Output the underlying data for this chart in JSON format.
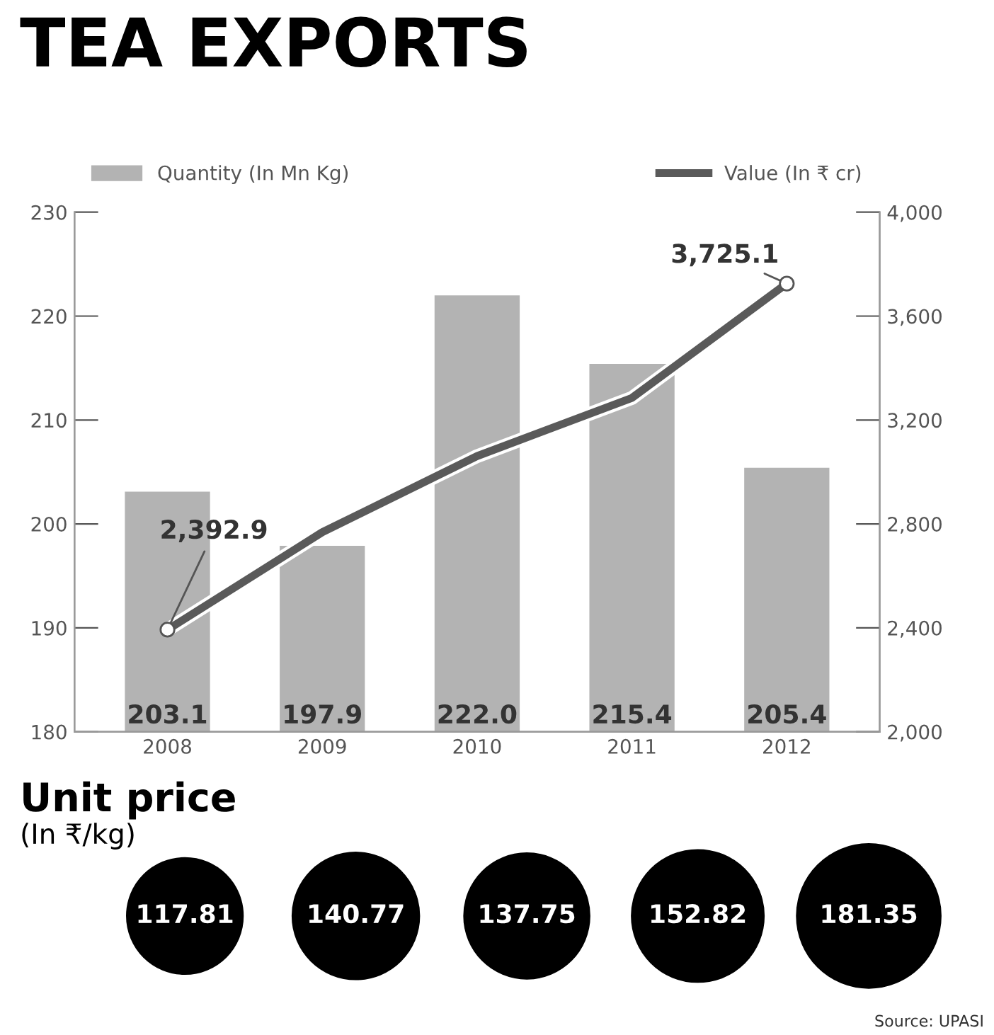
{
  "chart_data": [
    {
      "type": "bar",
      "title": "TEA EXPORTS",
      "categories": [
        "2008",
        "2009",
        "2010",
        "2011",
        "2012"
      ],
      "series": [
        {
          "name": "Quantity (In Mn Kg)",
          "type": "bar",
          "color": "#b3b3b3",
          "values": [
            203.1,
            197.9,
            222.0,
            215.4,
            205.4
          ],
          "value_labels": [
            "203.1",
            "197.9",
            "222.0",
            "215.4",
            "205.4"
          ]
        },
        {
          "name": "Value (In ₹ cr)",
          "type": "line",
          "axis": "y2",
          "color": "#5a5a5a",
          "values": [
            2392.9,
            2768,
            3061,
            3285,
            3725.1
          ],
          "value_labels": [
            "2,392.9",
            null,
            null,
            null,
            "3,725.1"
          ]
        }
      ],
      "ylim": [
        180,
        230
      ],
      "yticks": [
        180,
        190,
        200,
        210,
        220,
        230
      ],
      "y2lim": [
        2000,
        4000
      ],
      "y2ticks": [
        {
          "value": 2000,
          "label": "2,000"
        },
        {
          "value": 2400,
          "label": "2,400"
        },
        {
          "value": 2800,
          "label": "2,800"
        },
        {
          "value": 3200,
          "label": "3,200"
        },
        {
          "value": 3600,
          "label": "3,600"
        },
        {
          "value": 4000,
          "label": "4,000"
        }
      ],
      "data_labels": true,
      "legend": "top",
      "grid": false
    },
    {
      "type": "other",
      "title": "Unit price",
      "subtitle": "(In ₹/kg)",
      "categories": [
        null,
        null,
        null,
        null,
        null
      ],
      "values": [
        117.81,
        140.77,
        137.75,
        152.82,
        181.35
      ],
      "color": "#000000",
      "data_labels": true,
      "annotations": [
        "Source: UPASI"
      ]
    }
  ]
}
